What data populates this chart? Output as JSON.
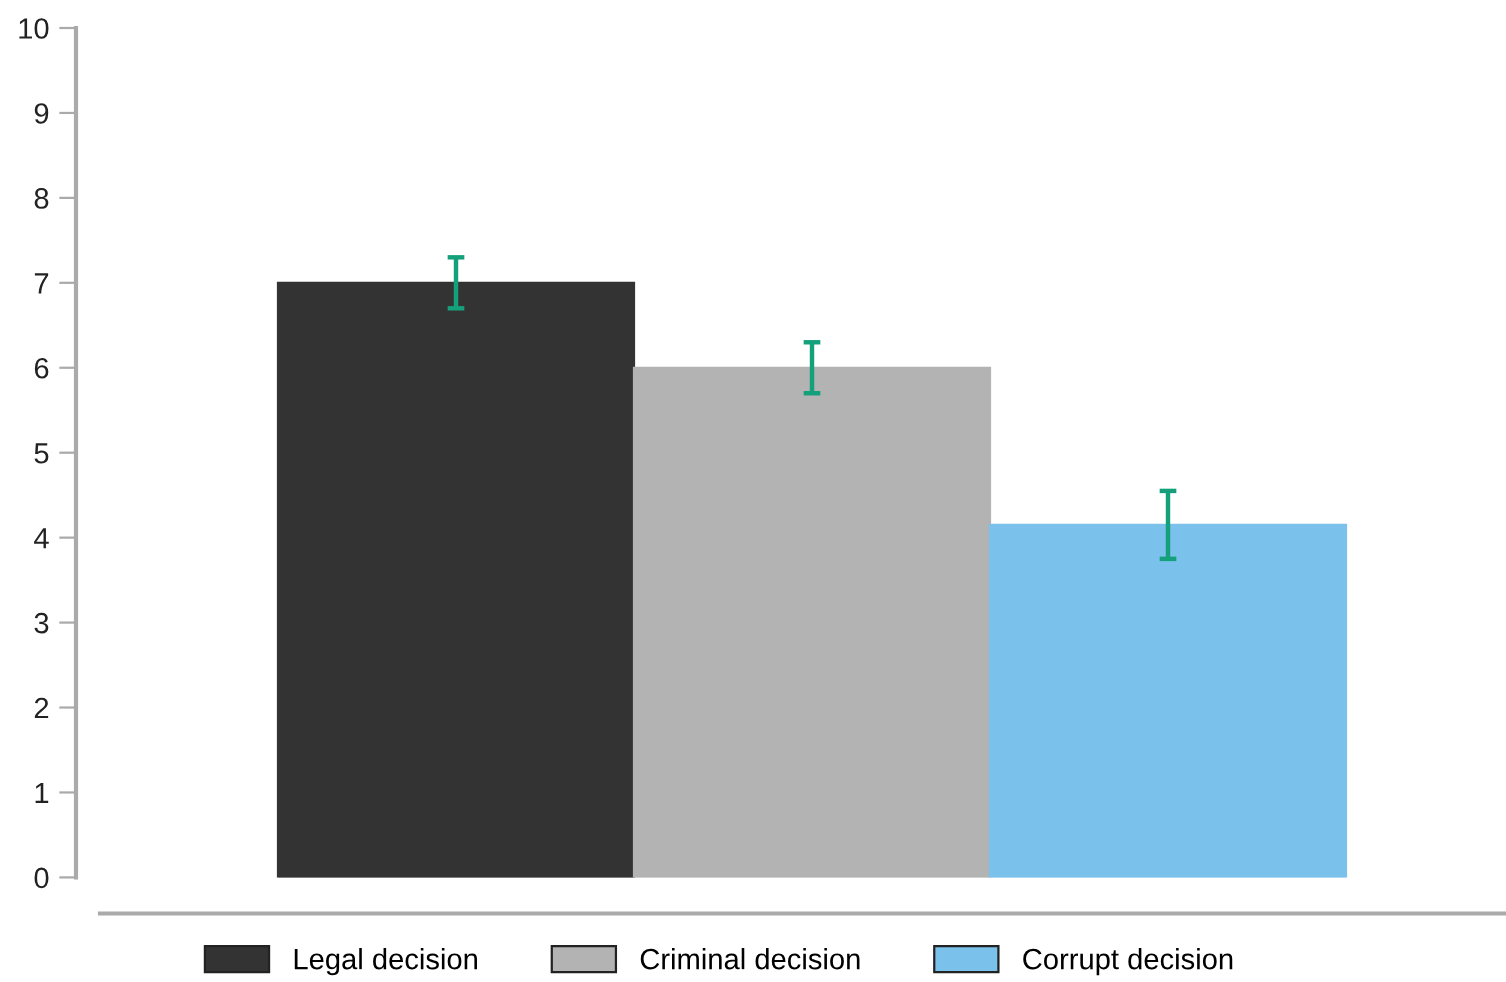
{
  "chart_data": {
    "type": "bar",
    "categories": [
      null
    ],
    "series": [
      {
        "name": "Legal decision",
        "color": "#333333",
        "values": [
          7.0
        ],
        "errors": [
          [
            6.7,
            7.3
          ]
        ]
      },
      {
        "name": "Criminal decision",
        "color": "#b3b3b3",
        "values": [
          6.0
        ],
        "errors": [
          [
            5.7,
            6.3
          ]
        ]
      },
      {
        "name": "Corrupt decision",
        "color": "#7ac1eb",
        "values": [
          4.15
        ],
        "errors": [
          [
            3.75,
            4.55
          ]
        ]
      }
    ],
    "ylim": [
      0,
      10
    ],
    "yticks": [
      0,
      1,
      2,
      3,
      4,
      5,
      6,
      7,
      8,
      9,
      10
    ],
    "tick_labels": "y",
    "grid": false,
    "legend": "bottom"
  }
}
